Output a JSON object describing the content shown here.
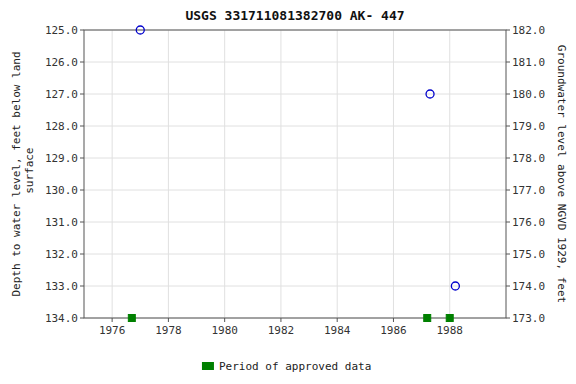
{
  "chart_data": {
    "type": "scatter",
    "title": "USGS 331711081382700 AK- 447",
    "ylabel": "Depth to water level, feet below land\n surface",
    "y2label": "Groundwater level above NGVD 1929, feet",
    "xlim": [
      1975.0,
      1990.0
    ],
    "ylim": [
      134.0,
      125.0
    ],
    "y2lim": [
      173.0,
      182.0
    ],
    "xticks": [
      1976,
      1978,
      1980,
      1982,
      1984,
      1986,
      1988
    ],
    "yticks": [
      {
        "value": 125.0,
        "label": "125.0"
      },
      {
        "value": 126.0,
        "label": "126.0"
      },
      {
        "value": 127.0,
        "label": "127.0"
      },
      {
        "value": 128.0,
        "label": "128.0"
      },
      {
        "value": 129.0,
        "label": "129.0"
      },
      {
        "value": 130.0,
        "label": "130.0"
      },
      {
        "value": 131.0,
        "label": "131.0"
      },
      {
        "value": 132.0,
        "label": "132.0"
      },
      {
        "value": 133.0,
        "label": "133.0"
      },
      {
        "value": 134.0,
        "label": "134.0"
      }
    ],
    "y2ticks": [
      {
        "value": 182.0,
        "label": "182.0"
      },
      {
        "value": 181.0,
        "label": "181.0"
      },
      {
        "value": 180.0,
        "label": "180.0"
      },
      {
        "value": 179.0,
        "label": "179.0"
      },
      {
        "value": 178.0,
        "label": "178.0"
      },
      {
        "value": 177.0,
        "label": "177.0"
      },
      {
        "value": 176.0,
        "label": "176.0"
      },
      {
        "value": 175.0,
        "label": "175.0"
      },
      {
        "value": 174.0,
        "label": "174.0"
      },
      {
        "value": 173.0,
        "label": "173.0"
      }
    ],
    "grid": true,
    "legend": "bottom",
    "series": [
      {
        "x": [
          1977.0,
          1987.3,
          1988.2
        ],
        "values": [
          125.0,
          127.0,
          133.0
        ],
        "color": "#0000cc",
        "marker": "circle"
      },
      {
        "name": "Period of approved data",
        "x": [
          1976.7,
          1987.2,
          1988.0
        ],
        "values": [
          134.0,
          134.0,
          134.0
        ],
        "color": "#008000",
        "marker": "square"
      }
    ]
  }
}
